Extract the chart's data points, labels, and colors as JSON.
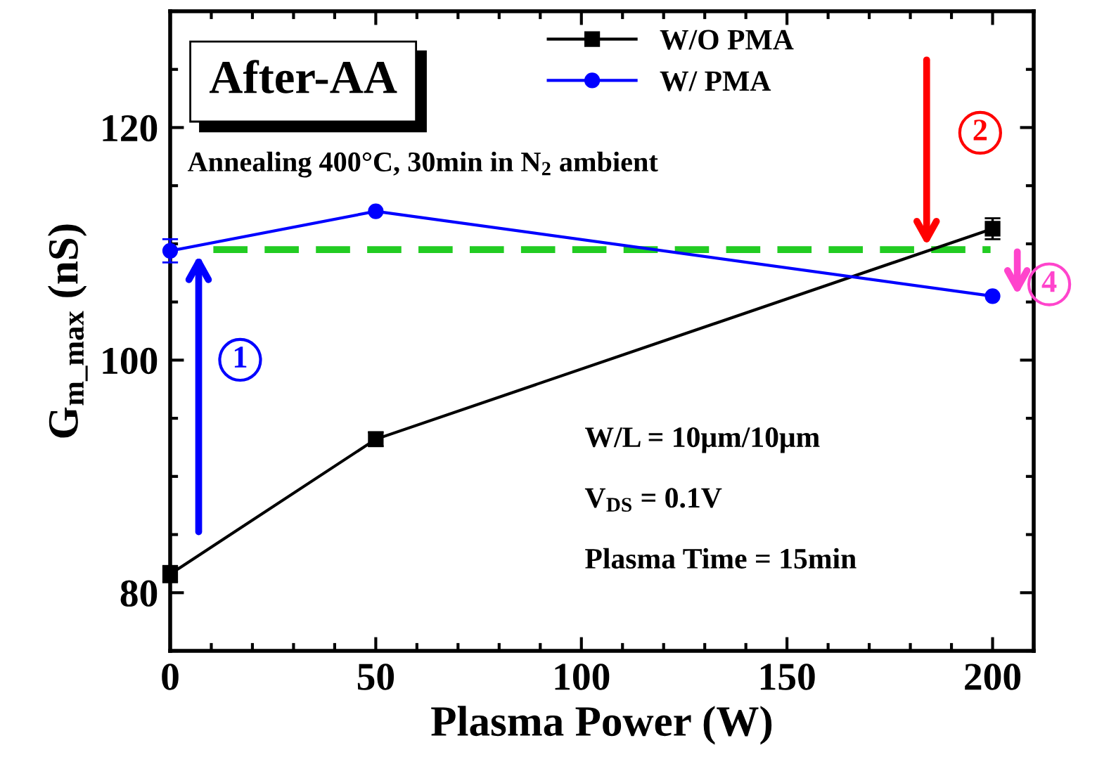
{
  "chart_data": {
    "type": "line",
    "xlabel": "Plasma Power (W)",
    "ylabel": "G$_{m_max}$ (nS)",
    "x": [
      0,
      50,
      200
    ],
    "xlim": [
      0,
      210
    ],
    "xticks": [
      0,
      50,
      100,
      150,
      200
    ],
    "ylim": [
      75,
      130
    ],
    "yticks": [
      80,
      100,
      120
    ],
    "series": [
      {
        "name": "W/O PMA",
        "color": "#000000",
        "marker": "square",
        "values": [
          81.6,
          93.2,
          111.3
        ],
        "errors": [
          0.7,
          0.6,
          0.9
        ]
      },
      {
        "name": "W/ PMA",
        "color": "#0000ff",
        "marker": "circle",
        "values": [
          109.4,
          112.8,
          105.5
        ],
        "errors": [
          1.0,
          null,
          null
        ]
      }
    ],
    "ref_lines": [
      {
        "axis": "y",
        "value": 109.5,
        "color": "#22cc22",
        "line_style": "dashed"
      }
    ],
    "annotations": [
      "After-AA",
      "Annealing 400°C, 30min in N$_{2}$ ambient",
      "W/L = 10μm/10μm",
      "V$_{DS}$ = 0.1V",
      "Plasma Time = 15min",
      "1",
      "2",
      "4"
    ],
    "legend": "top",
    "grid": false
  }
}
